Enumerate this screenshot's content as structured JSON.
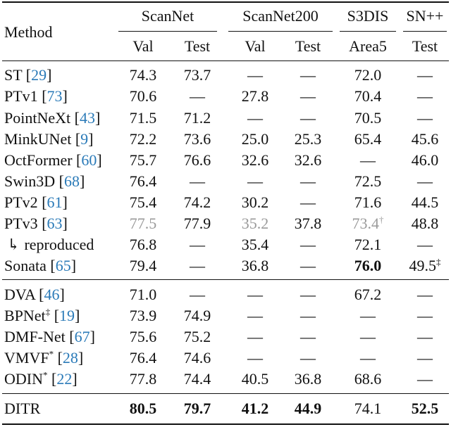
{
  "headers": {
    "method": "Method",
    "groups": [
      "ScanNet",
      "ScanNet200",
      "S3DIS",
      "SN++"
    ],
    "subs": [
      "Val",
      "Test",
      "Val",
      "Test",
      "Area5",
      "Test"
    ]
  },
  "dash": "—",
  "rows": [
    {
      "name": "ST",
      "cite": "29",
      "mark": "",
      "cells": [
        "74.3",
        "73.7",
        "—",
        "—",
        "72.0",
        "—"
      ]
    },
    {
      "name": "PTv1",
      "cite": "73",
      "mark": "",
      "cells": [
        "70.6",
        "—",
        "27.8",
        "—",
        "70.4",
        "—"
      ]
    },
    {
      "name": "PointNeXt",
      "cite": "43",
      "mark": "",
      "cells": [
        "71.5",
        "71.2",
        "—",
        "—",
        "70.5",
        "—"
      ]
    },
    {
      "name": "MinkUNet",
      "cite": "9",
      "mark": "",
      "cells": [
        "72.2",
        "73.6",
        "25.0",
        "25.3",
        "65.4",
        "45.6"
      ]
    },
    {
      "name": "OctFormer",
      "cite": "60",
      "mark": "",
      "cells": [
        "75.7",
        "76.6",
        "32.6",
        "32.6",
        "—",
        "46.0"
      ]
    },
    {
      "name": "Swin3D",
      "cite": "68",
      "mark": "",
      "cells": [
        "76.4",
        "—",
        "—",
        "—",
        "72.5",
        "—"
      ]
    },
    {
      "name": "PTv2",
      "cite": "61",
      "mark": "",
      "cells": [
        "75.4",
        "74.2",
        "30.2",
        "—",
        "71.6",
        "44.5"
      ]
    },
    {
      "name": "PTv3",
      "cite": "63",
      "mark": "",
      "cells": [
        "77.5",
        "77.9",
        "35.2",
        "37.8",
        "73.4",
        "48.8"
      ]
    },
    {
      "name": "reproduced",
      "cite": "",
      "mark": "",
      "cells": [
        "76.8",
        "—",
        "35.4",
        "—",
        "72.1",
        "—"
      ]
    },
    {
      "name": "Sonata",
      "cite": "65",
      "mark": "",
      "cells": [
        "79.4",
        "—",
        "36.8",
        "—",
        "76.0",
        "49.5"
      ]
    },
    {
      "name": "DVA",
      "cite": "46",
      "mark": "",
      "cells": [
        "71.0",
        "—",
        "—",
        "—",
        "67.2",
        "—"
      ]
    },
    {
      "name": "BPNet",
      "cite": "19",
      "mark": "‡",
      "cells": [
        "73.9",
        "74.9",
        "—",
        "—",
        "—",
        "—"
      ]
    },
    {
      "name": "DMF-Net",
      "cite": "67",
      "mark": "",
      "cells": [
        "75.6",
        "75.2",
        "—",
        "—",
        "—",
        "—"
      ]
    },
    {
      "name": "VMVF",
      "cite": "28",
      "mark": "*",
      "cells": [
        "76.4",
        "74.6",
        "—",
        "—",
        "—",
        "—"
      ]
    },
    {
      "name": "ODIN",
      "cite": "22",
      "mark": "*",
      "cells": [
        "77.8",
        "74.4",
        "40.5",
        "36.8",
        "68.6",
        "—"
      ]
    },
    {
      "name": "DITR",
      "cite": "",
      "mark": "",
      "cells": [
        "80.5",
        "79.7",
        "41.2",
        "44.9",
        "74.1",
        "52.5"
      ]
    }
  ],
  "sup": {
    "dagger": "†",
    "ddagger": "‡"
  },
  "arrow": "↳"
}
